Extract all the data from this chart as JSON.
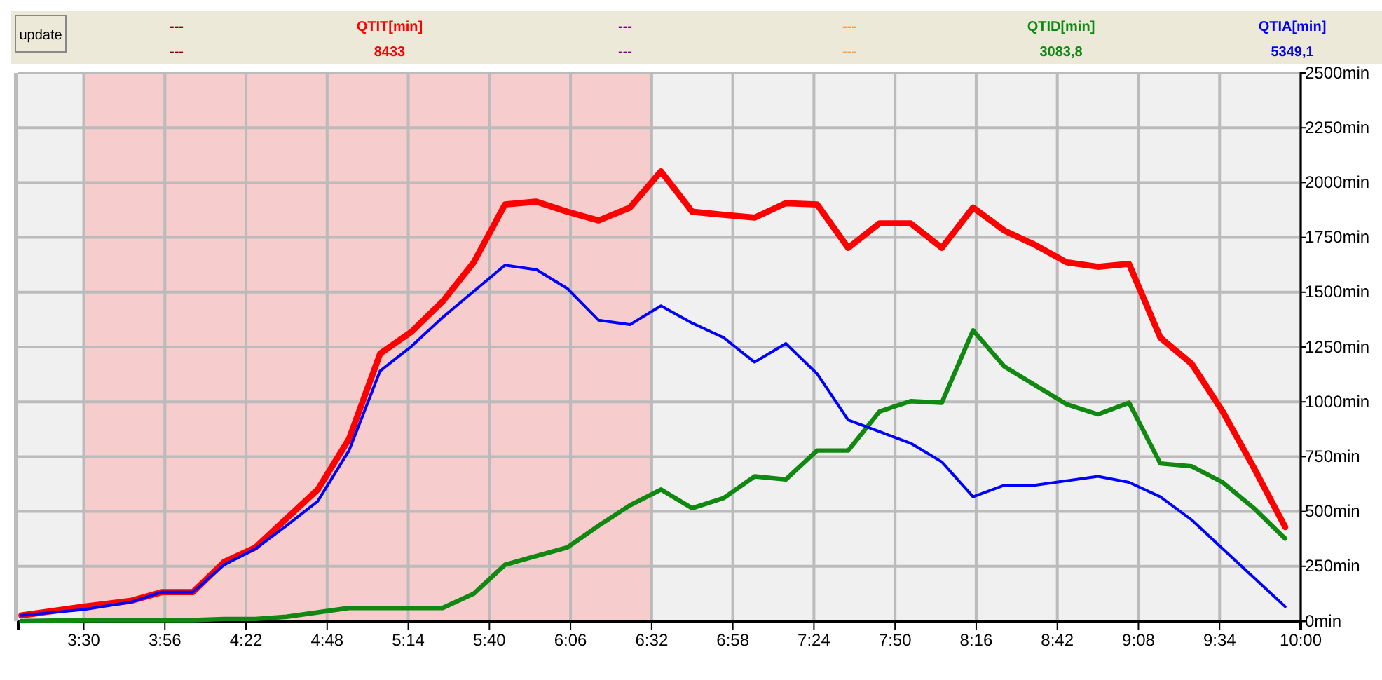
{
  "chart_data": {
    "type": "line",
    "x": [
      3.167,
      3.5,
      3.75,
      3.917,
      4.083,
      4.25,
      4.417,
      4.583,
      4.75,
      4.917,
      5.083,
      5.25,
      5.417,
      5.583,
      5.75,
      5.917,
      6.083,
      6.25,
      6.417,
      6.583,
      6.75,
      6.917,
      7.083,
      7.25,
      7.417,
      7.583,
      7.75,
      7.917,
      8.083,
      8.25,
      8.417,
      8.583,
      8.75,
      8.917,
      9.083,
      9.25,
      9.417,
      9.583,
      9.75,
      9.917
    ],
    "series": [
      {
        "name": "QTIT[min]",
        "color": "#ff0000",
        "values": [
          26,
          66,
          92,
          132,
          132,
          270,
          336,
          468,
          600,
          831,
          1220,
          1319,
          1458,
          1636,
          1900,
          1913,
          1867,
          1827,
          1886,
          2051,
          1867,
          1853,
          1840,
          1906,
          1900,
          1702,
          1814,
          1814,
          1702,
          1886,
          1781,
          1715,
          1636,
          1616,
          1629,
          1293,
          1174,
          956,
          699,
          429
        ]
      },
      {
        "name": "QTID[min]",
        "color": "#118811",
        "values": [
          0,
          5,
          5,
          5,
          5,
          10,
          10,
          20,
          40,
          60,
          60,
          60,
          60,
          125,
          257,
          297,
          336,
          435,
          528,
          600,
          515,
          561,
          660,
          646,
          778,
          778,
          956,
          1003,
          996,
          1326,
          1161,
          1075,
          989,
          943,
          996,
          719,
          706,
          633,
          515,
          376
        ]
      },
      {
        "name": "QTIA[min]",
        "color": "#0000ff",
        "values": [
          26,
          53,
          86,
          132,
          132,
          257,
          330,
          435,
          547,
          778,
          1141,
          1253,
          1385,
          1504,
          1623,
          1603,
          1517,
          1372,
          1352,
          1438,
          1359,
          1293,
          1181,
          1266,
          1128,
          917,
          864,
          811,
          726,
          567,
          620,
          620,
          640,
          660,
          633,
          567,
          462,
          330,
          198,
          66
        ]
      }
    ],
    "xlim": [
      3.15,
      10
    ],
    "xticks": [
      {
        "value": 3.5,
        "label": "3:30"
      },
      {
        "value": 3.9333,
        "label": "3:56"
      },
      {
        "value": 4.3667,
        "label": "4:22"
      },
      {
        "value": 4.8,
        "label": "4:48"
      },
      {
        "value": 5.2333,
        "label": "5:14"
      },
      {
        "value": 5.6667,
        "label": "5:40"
      },
      {
        "value": 6.1,
        "label": "6:06"
      },
      {
        "value": 6.5333,
        "label": "6:32"
      },
      {
        "value": 6.9667,
        "label": "6:58"
      },
      {
        "value": 7.4,
        "label": "7:24"
      },
      {
        "value": 7.8333,
        "label": "7:50"
      },
      {
        "value": 8.2667,
        "label": "8:16"
      },
      {
        "value": 8.7,
        "label": "8:42"
      },
      {
        "value": 9.1333,
        "label": "9:08"
      },
      {
        "value": 9.5667,
        "label": "9:34"
      },
      {
        "value": 10,
        "label": "10:00"
      }
    ],
    "ylim": [
      0,
      2500
    ],
    "yticks": [
      {
        "value": 0,
        "label": "0min"
      },
      {
        "value": 250,
        "label": "250min"
      },
      {
        "value": 500,
        "label": "500min"
      },
      {
        "value": 750,
        "label": "750min"
      },
      {
        "value": 1000,
        "label": "1000min"
      },
      {
        "value": 1250,
        "label": "1250min"
      },
      {
        "value": 1500,
        "label": "1500min"
      },
      {
        "value": 1750,
        "label": "1750min"
      },
      {
        "value": 2000,
        "label": "2000min"
      },
      {
        "value": 2250,
        "label": "2250min"
      },
      {
        "value": 2500,
        "label": "2500min"
      }
    ],
    "bands": [
      {
        "axis": "x",
        "from": 3.5,
        "to": 6.5333,
        "color": "#f6cccc"
      }
    ],
    "annotations": [
      "update",
      "---",
      "---",
      "8433",
      "---",
      "---",
      "---",
      "---",
      "3083,8",
      "5349,1"
    ],
    "grid": true,
    "legend": "top",
    "marker": "none",
    "line_style": "solid"
  }
}
